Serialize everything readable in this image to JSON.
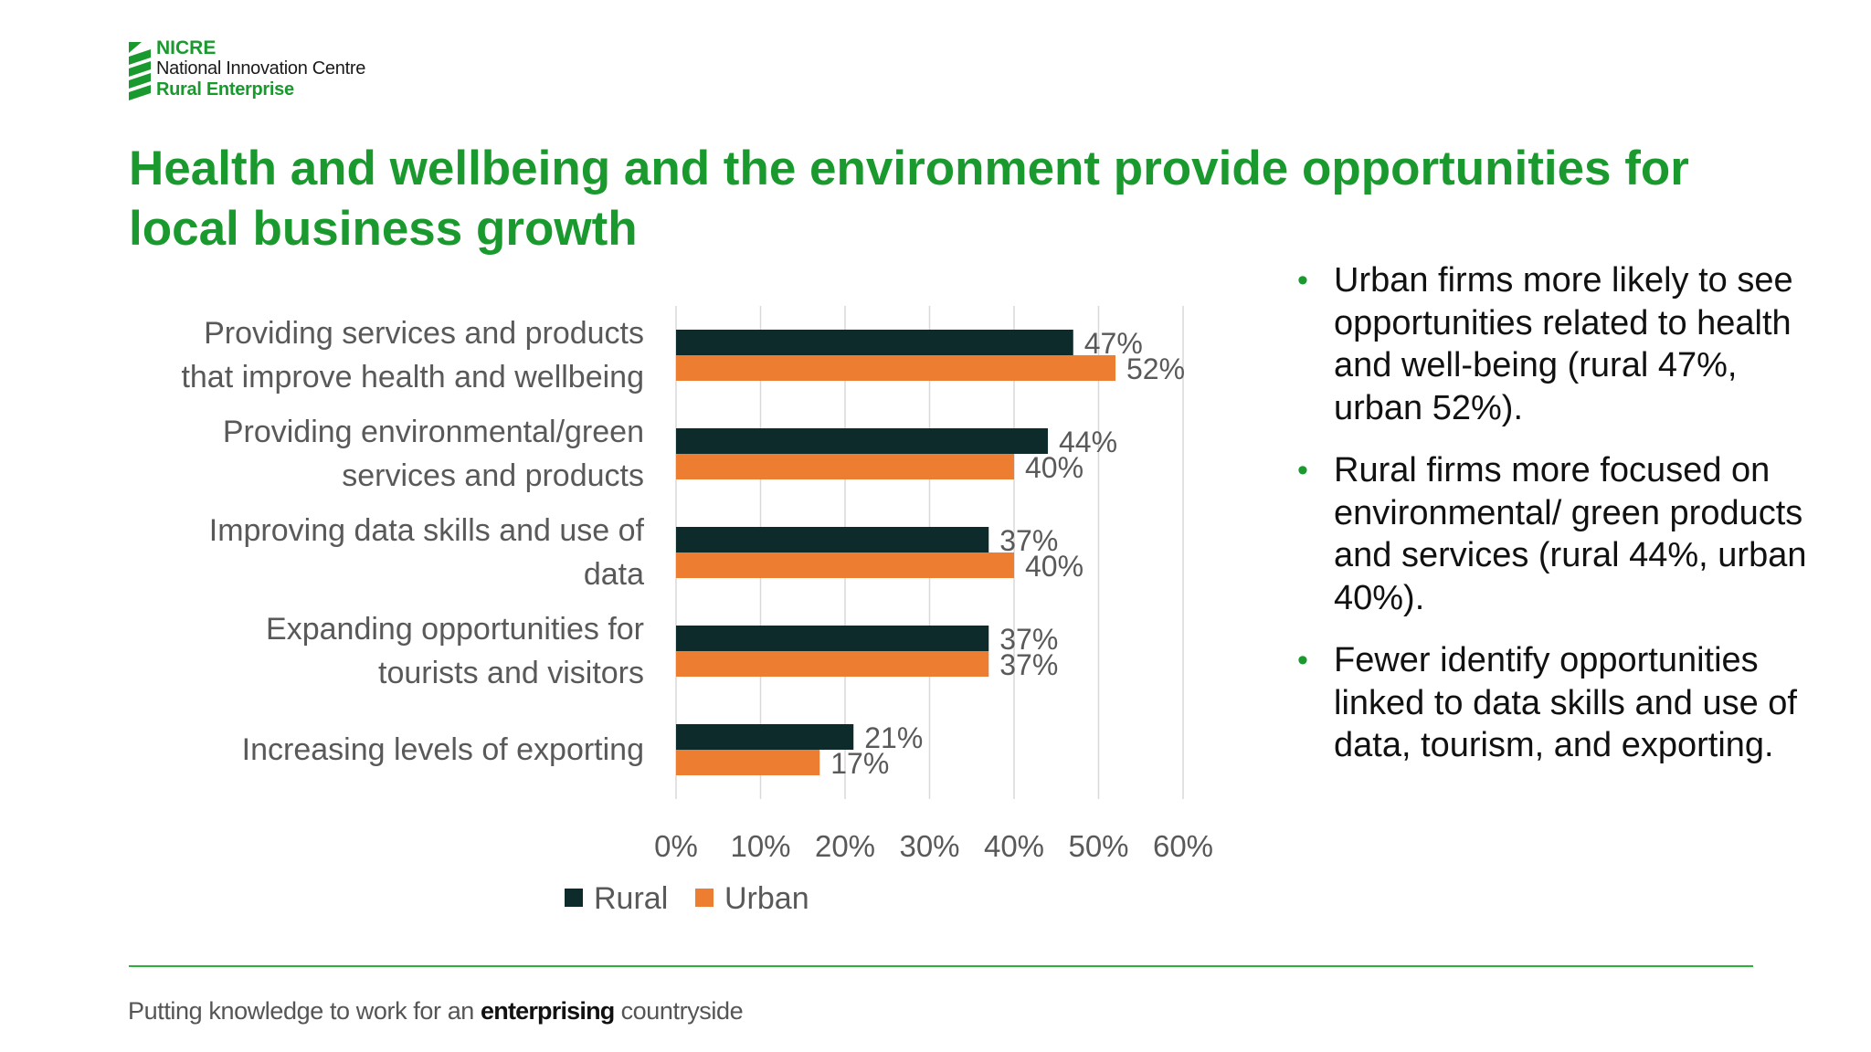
{
  "logo": {
    "line1": "NICRE",
    "line2": "National Innovation Centre",
    "line3": "Rural Enterprise"
  },
  "title": "Health and wellbeing and the environment provide opportunities for local business growth",
  "bullets": [
    "Urban firms more likely to see opportunities related to health and well-being (rural 47%, urban 52%).",
    "Rural firms more focused on environmental/ green products and services (rural 44%, urban 40%).",
    "Fewer identify opportunities linked to data skills and use of data, tourism, and exporting."
  ],
  "footer": {
    "tagline_pre": "Putting knowledge to work for an ",
    "tagline_bold": "enterprising",
    "tagline_post": " countryside"
  },
  "colors": {
    "brand_green": "#1a9a2e",
    "rural": "#0d2b2b",
    "urban": "#ed7d31",
    "gridline": "#d9d9d9",
    "label_text": "#595959"
  },
  "chart_data": {
    "type": "bar",
    "orientation": "horizontal",
    "categories": [
      [
        "Providing services and products",
        "that improve health and wellbeing"
      ],
      [
        "Providing environmental/green",
        "services and products"
      ],
      [
        "Improving data skills and use of",
        "data"
      ],
      [
        "Expanding opportunities for",
        "tourists and visitors"
      ],
      [
        "Increasing levels of exporting"
      ]
    ],
    "series": [
      {
        "name": "Rural",
        "color": "#0d2b2b",
        "values": [
          47,
          44,
          37,
          37,
          21
        ]
      },
      {
        "name": "Urban",
        "color": "#ed7d31",
        "values": [
          52,
          40,
          40,
          37,
          17
        ]
      }
    ],
    "value_suffix": "%",
    "xlim": [
      0,
      60
    ],
    "xticks": [
      0,
      10,
      20,
      30,
      40,
      50,
      60
    ],
    "xtick_labels": [
      "0%",
      "10%",
      "20%",
      "30%",
      "40%",
      "50%",
      "60%"
    ],
    "grid": true,
    "legend_position": "bottom"
  }
}
